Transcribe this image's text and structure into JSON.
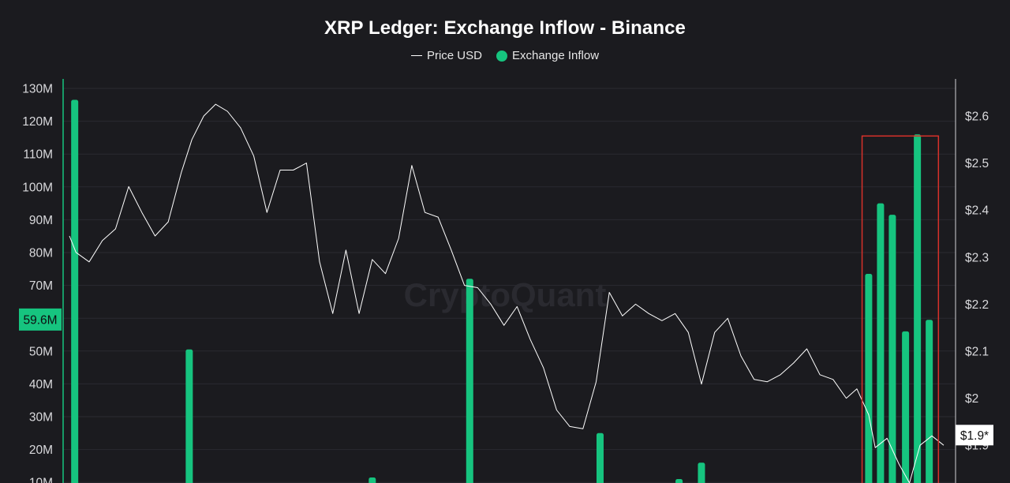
{
  "chart_data": {
    "type": "bar+line",
    "title": "XRP Ledger: Exchange Inflow - Binance",
    "watermark": "CryptoQuant",
    "legend": [
      {
        "label": "Price USD",
        "marker": "line",
        "color": "#ffffff"
      },
      {
        "label": "Exchange Inflow",
        "marker": "dot",
        "color": "#16c47f"
      }
    ],
    "left_axis": {
      "ticks": [
        "130M",
        "120M",
        "110M",
        "100M",
        "90M",
        "80M",
        "70M",
        "50M",
        "40M",
        "30M",
        "20M",
        "10M"
      ],
      "tick_values": [
        130,
        120,
        110,
        100,
        90,
        80,
        70,
        50,
        40,
        30,
        20,
        10
      ],
      "highlight_label": "59.6M",
      "highlight_value": 59.6,
      "highlight_color": "#16c47f"
    },
    "right_axis": {
      "ticks": [
        "$2.6",
        "$2.5",
        "$2.4",
        "$2.3",
        "$2.2",
        "$2.1",
        "$2",
        "$1.9"
      ],
      "tick_values": [
        2.6,
        2.5,
        2.4,
        2.3,
        2.2,
        2.1,
        2.0,
        1.9
      ],
      "current_label": "$1.9*",
      "current_value": 1.925
    },
    "series": [
      {
        "name": "Exchange Inflow",
        "type": "bar",
        "color": "#16c47f",
        "points": [
          [
            0.4,
            126.5
          ],
          [
            9.1,
            50.5
          ],
          [
            23.0,
            11.5
          ],
          [
            30.4,
            72
          ],
          [
            40.3,
            25
          ],
          [
            46.3,
            11
          ],
          [
            48.0,
            16
          ],
          [
            60.7,
            73.5
          ],
          [
            61.6,
            95
          ],
          [
            62.5,
            91.5
          ],
          [
            63.5,
            56
          ],
          [
            64.4,
            116
          ],
          [
            65.3,
            59.5
          ]
        ]
      },
      {
        "name": "Price USD",
        "type": "line",
        "color": "#ffffff",
        "points": [
          [
            0,
            2.345
          ],
          [
            0.5,
            2.31
          ],
          [
            1.5,
            2.29
          ],
          [
            2.5,
            2.335
          ],
          [
            3.5,
            2.36
          ],
          [
            4.5,
            2.45
          ],
          [
            5.5,
            2.395
          ],
          [
            6.5,
            2.345
          ],
          [
            7.5,
            2.375
          ],
          [
            8.5,
            2.48
          ],
          [
            9.3,
            2.55
          ],
          [
            10.2,
            2.6
          ],
          [
            11.1,
            2.625
          ],
          [
            12.0,
            2.61
          ],
          [
            13.0,
            2.575
          ],
          [
            14.0,
            2.515
          ],
          [
            15.0,
            2.395
          ],
          [
            16.0,
            2.485
          ],
          [
            17.0,
            2.485
          ],
          [
            18.0,
            2.5
          ],
          [
            19.0,
            2.29
          ],
          [
            20.0,
            2.18
          ],
          [
            21.0,
            2.315
          ],
          [
            22.0,
            2.18
          ],
          [
            23.0,
            2.295
          ],
          [
            24.0,
            2.265
          ],
          [
            25.0,
            2.34
          ],
          [
            26.0,
            2.495
          ],
          [
            27.0,
            2.395
          ],
          [
            28.0,
            2.385
          ],
          [
            29.0,
            2.315
          ],
          [
            30.0,
            2.24
          ],
          [
            31.0,
            2.235
          ],
          [
            32.0,
            2.2
          ],
          [
            33.0,
            2.155
          ],
          [
            34.0,
            2.195
          ],
          [
            35.0,
            2.125
          ],
          [
            36.0,
            2.065
          ],
          [
            37.0,
            1.975
          ],
          [
            38.0,
            1.94
          ],
          [
            39.0,
            1.935
          ],
          [
            40.0,
            2.035
          ],
          [
            41.0,
            2.225
          ],
          [
            42.0,
            2.175
          ],
          [
            43.0,
            2.2
          ],
          [
            44.0,
            2.18
          ],
          [
            45.0,
            2.165
          ],
          [
            46.0,
            2.18
          ],
          [
            47.0,
            2.14
          ],
          [
            48.0,
            2.03
          ],
          [
            49.0,
            2.14
          ],
          [
            50.0,
            2.17
          ],
          [
            51.0,
            2.09
          ],
          [
            52.0,
            2.04
          ],
          [
            53.0,
            2.035
          ],
          [
            54.0,
            2.05
          ],
          [
            55.0,
            2.075
          ],
          [
            56.0,
            2.105
          ],
          [
            57.0,
            2.05
          ],
          [
            58.0,
            2.04
          ],
          [
            59.0,
            2.0
          ],
          [
            59.8,
            2.02
          ],
          [
            60.7,
            1.965
          ],
          [
            61.2,
            1.895
          ],
          [
            62.1,
            1.915
          ],
          [
            63.0,
            1.86
          ],
          [
            63.8,
            1.82
          ],
          [
            64.6,
            1.9
          ],
          [
            65.5,
            1.92
          ],
          [
            66.4,
            1.9
          ]
        ]
      }
    ],
    "highlight_box": {
      "x_range": [
        60.2,
        66.0
      ],
      "y_range_M": [
        0,
        115.5
      ],
      "color": "#d8312a"
    },
    "grid": true,
    "legend_position": "top-center"
  }
}
